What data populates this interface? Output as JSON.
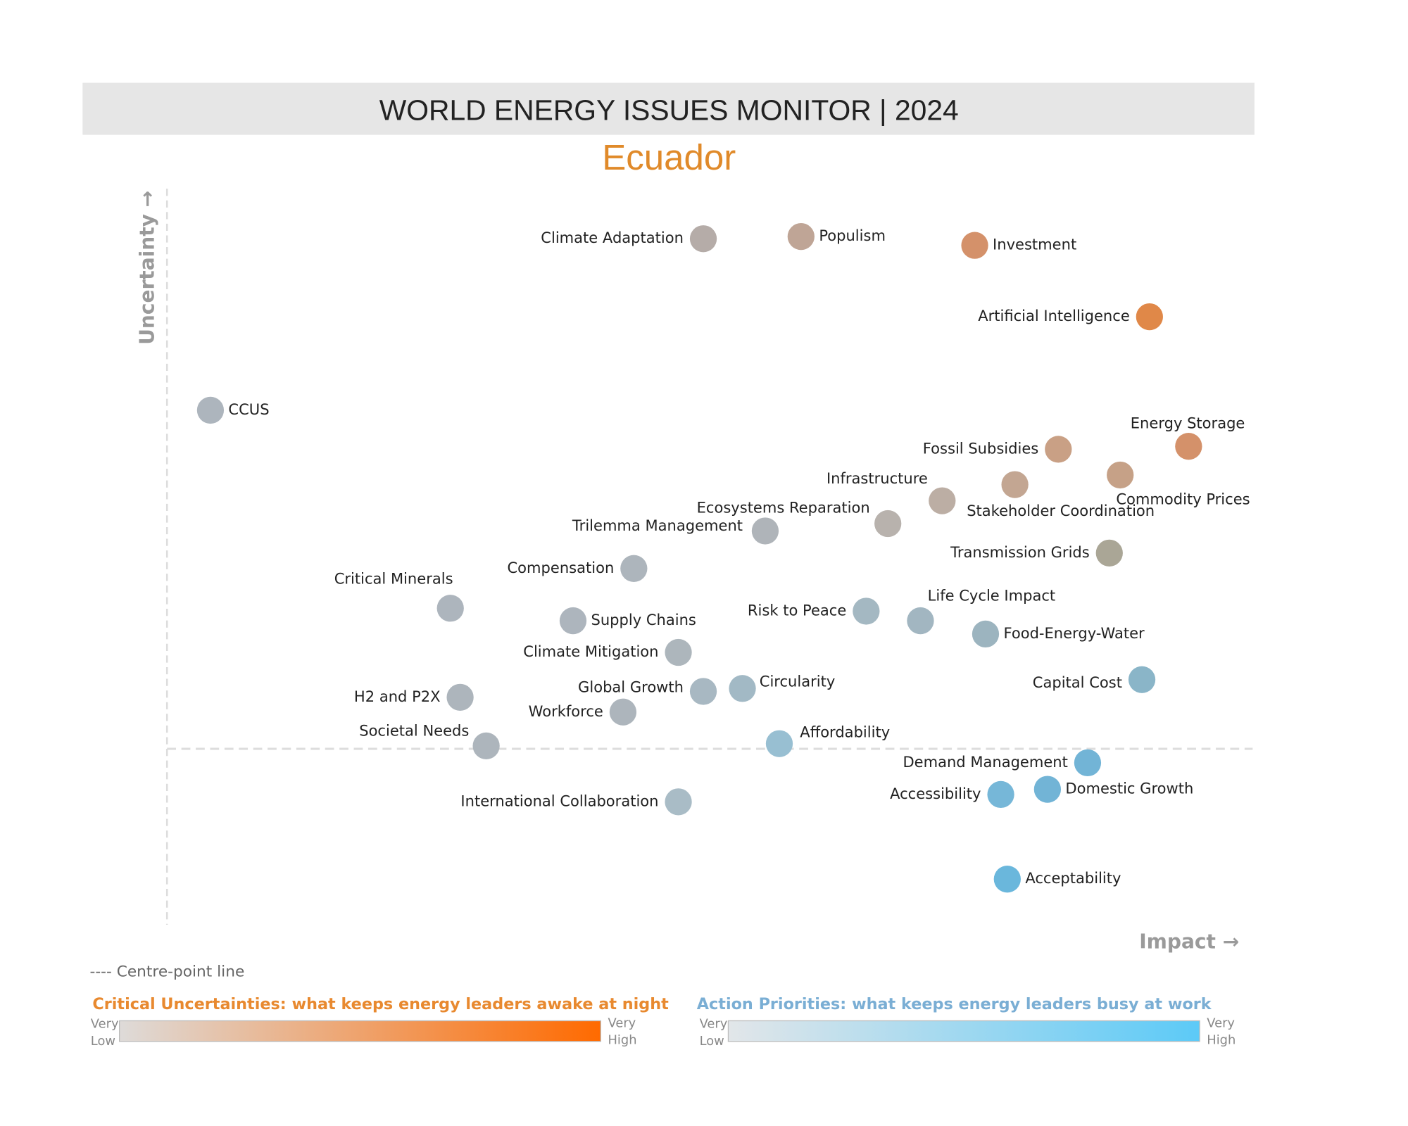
{
  "chart_data": {
    "type": "scatter",
    "title": "WORLD ENERGY ISSUES MONITOR | 2024",
    "subtitle": "Ecuador",
    "x_label": "Impact →",
    "y_label": "Uncertainty →",
    "xlim": [
      0,
      100
    ],
    "ylim": [
      0,
      100
    ],
    "centre_line": 23.9,
    "labels": [
      "Climate Adaptation",
      "Populism",
      "Investment",
      "Artificial Intelligence",
      "CCUS",
      "Energy Storage",
      "Fossil Subsidies",
      "Commodity Prices",
      "Stakeholder Coordination",
      "Infrastructure",
      "Ecosystems Reparation",
      "Trilemma Management",
      "Transmission Grids",
      "Compensation",
      "Critical Minerals",
      "Supply Chains",
      "Risk to Peace",
      "Life Cycle Impact",
      "Food-Energy-Water",
      "Climate Mitigation",
      "Capital Cost",
      "Global Growth",
      "Circularity",
      "H2 and P2X",
      "Workforce",
      "Societal Needs",
      "Affordability",
      "Demand Management",
      "Accessibility",
      "Domestic Growth",
      "International Collaboration",
      "Acceptability"
    ],
    "x": [
      49.4,
      58.4,
      74.4,
      90.5,
      4.0,
      94.1,
      82.1,
      87.8,
      78.1,
      71.4,
      66.4,
      55.1,
      86.8,
      43.0,
      26.1,
      37.4,
      64.4,
      69.4,
      75.4,
      47.1,
      89.8,
      49.4,
      53.0,
      27.0,
      42.0,
      29.4,
      56.4,
      84.8,
      76.8,
      81.1,
      47.1,
      77.4
    ],
    "values": [
      93.2,
      93.5,
      92.3,
      82.6,
      69.9,
      65.0,
      64.6,
      61.1,
      59.8,
      57.6,
      54.5,
      53.5,
      50.5,
      48.4,
      43.0,
      41.3,
      42.6,
      41.3,
      39.5,
      37.0,
      33.3,
      31.7,
      32.1,
      30.9,
      28.9,
      24.3,
      24.6,
      22.0,
      17.7,
      18.4,
      16.7,
      6.2
    ],
    "colors": [
      "#b5aca8",
      "#bfa596",
      "#d4916a",
      "#e08848",
      "#adb5bd",
      "#d4916a",
      "#c9a085",
      "#c6a187",
      "#c3a692",
      "#bcaea4",
      "#b8b2ad",
      "#afb4b9",
      "#aaa696",
      "#adb5bc",
      "#adb5bd",
      "#adb5bd",
      "#a4b8c2",
      "#a2b6c1",
      "#9cb4bf",
      "#adb6bc",
      "#8ab5c8",
      "#a8b8c2",
      "#a2b9c5",
      "#adb5bc",
      "#adb5bc",
      "#adb5bc",
      "#98bfd2",
      "#72b4d6",
      "#76b7d8",
      "#72b4d6",
      "#a9bcc6",
      "#6ab7dc"
    ],
    "centre_line_label": "---- Centre-point line",
    "scales": [
      {
        "title": "Critical Uncertainties: what keeps energy leaders awake at night",
        "low_label": [
          "Very",
          "Low"
        ],
        "high_label": [
          "Very",
          "High"
        ],
        "colors": [
          "#dedbd9",
          "#ff6a00"
        ],
        "title_color": "#e8892f"
      },
      {
        "title": "Action Priorities: what keeps energy leaders busy at work",
        "low_label": [
          "Very",
          "Low"
        ],
        "high_label": [
          "Very",
          "High"
        ],
        "colors": [
          "#e2e6e9",
          "#5ccaf7"
        ],
        "title_color": "#7aaed4"
      }
    ]
  }
}
